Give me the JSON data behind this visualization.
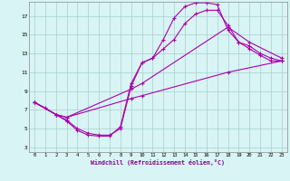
{
  "xlabel": "Windchill (Refroidissement éolien,°C)",
  "bg_color": "#d8f4f4",
  "grid_color": "#aacece",
  "line_color": "#aa00aa",
  "xlim": [
    -0.5,
    23.5
  ],
  "ylim": [
    2.5,
    18.5
  ],
  "xticks": [
    0,
    1,
    2,
    3,
    4,
    5,
    6,
    7,
    8,
    9,
    10,
    11,
    12,
    13,
    14,
    15,
    16,
    17,
    18,
    19,
    20,
    21,
    22,
    23
  ],
  "yticks": [
    3,
    5,
    7,
    9,
    11,
    13,
    15,
    17
  ],
  "curve1_x": [
    0,
    1,
    2,
    3,
    4,
    5,
    6,
    7,
    8,
    9,
    10,
    11,
    12,
    13,
    14,
    15,
    16,
    17,
    18,
    19,
    20,
    21,
    22,
    23
  ],
  "curve1_y": [
    7.8,
    7.2,
    6.5,
    5.8,
    4.8,
    4.3,
    4.2,
    4.2,
    5.2,
    9.8,
    12.0,
    12.5,
    14.5,
    16.8,
    18.0,
    18.4,
    18.4,
    18.2,
    15.5,
    14.2,
    13.5,
    12.8,
    12.2,
    12.2
  ],
  "curve2_x": [
    0,
    2,
    3,
    4,
    5,
    6,
    7,
    8,
    9,
    10,
    11,
    12,
    13,
    14,
    15,
    16,
    17,
    18,
    19,
    20,
    21,
    22,
    23
  ],
  "curve2_y": [
    7.8,
    6.5,
    5.9,
    5.0,
    4.5,
    4.3,
    4.3,
    5.0,
    9.5,
    12.0,
    12.5,
    13.5,
    14.5,
    16.2,
    17.2,
    17.6,
    17.6,
    16.0,
    14.2,
    13.8,
    13.0,
    12.5,
    12.2
  ],
  "curve3_x": [
    0,
    2,
    3,
    9,
    10,
    18,
    20,
    23
  ],
  "curve3_y": [
    7.8,
    6.5,
    6.2,
    9.2,
    9.8,
    15.8,
    14.2,
    12.5
  ],
  "curve4_x": [
    0,
    2,
    3,
    9,
    10,
    18,
    23
  ],
  "curve4_y": [
    7.8,
    6.5,
    6.2,
    8.2,
    8.5,
    11.0,
    12.2
  ]
}
